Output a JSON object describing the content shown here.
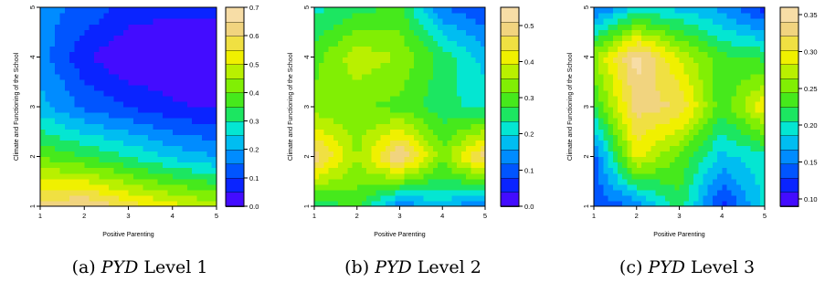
{
  "chart_data": [
    {
      "type": "heatmap",
      "subtype": "filled-contour",
      "caption_label": "(a)",
      "caption_em": "PYD",
      "caption_rest": "Level 1",
      "xlabel": "Positive Parenting",
      "ylabel": "Climate and Functioning of the School",
      "x": [
        1,
        2,
        3,
        4,
        5
      ],
      "y": [
        1,
        2,
        3,
        4,
        5
      ],
      "xlim": [
        1,
        5
      ],
      "ylim": [
        1,
        5
      ],
      "x_ticks": [
        "1",
        "2",
        "3",
        "4",
        "5"
      ],
      "y_ticks": [
        "1",
        "2",
        "3",
        "4",
        "5"
      ],
      "legend_ticks": [
        "0.0",
        "0.1",
        "0.2",
        "0.3",
        "0.4",
        "0.5",
        "0.6",
        "0.7"
      ],
      "zlim": [
        0,
        0.7
      ],
      "z": [
        [
          0.62,
          0.66,
          0.58,
          0.52,
          0.48
        ],
        [
          0.4,
          0.35,
          0.3,
          0.24,
          0.2
        ],
        [
          0.22,
          0.14,
          0.1,
          0.06,
          0.04
        ],
        [
          0.18,
          0.06,
          0.0,
          0.0,
          0.02
        ],
        [
          0.17,
          0.14,
          0.08,
          0.06,
          0.06
        ]
      ]
    },
    {
      "type": "heatmap",
      "subtype": "filled-contour",
      "caption_label": "(b)",
      "caption_em": "PYD",
      "caption_rest": "Level 2",
      "xlabel": "Positive Parenting",
      "ylabel": "Climate and Functioning of the School",
      "x": [
        1,
        2,
        3,
        4,
        5
      ],
      "y": [
        1,
        2,
        3,
        4,
        5
      ],
      "xlim": [
        1,
        5
      ],
      "ylim": [
        1,
        5
      ],
      "x_ticks": [
        "1",
        "2",
        "3",
        "4",
        "5"
      ],
      "y_ticks": [
        "1",
        "2",
        "3",
        "4",
        "5"
      ],
      "legend_ticks": [
        "0.0",
        "0.1",
        "0.2",
        "0.3",
        "0.4",
        "0.5"
      ],
      "zlim": [
        0,
        0.55
      ],
      "z": [
        [
          0.24,
          0.29,
          0.12,
          0.18,
          0.1
        ],
        [
          0.5,
          0.35,
          0.52,
          0.33,
          0.5
        ],
        [
          0.33,
          0.32,
          0.3,
          0.25,
          0.22
        ],
        [
          0.3,
          0.38,
          0.35,
          0.26,
          0.18
        ],
        [
          0.22,
          0.26,
          0.28,
          0.12,
          0.08
        ]
      ]
    },
    {
      "type": "heatmap",
      "subtype": "filled-contour",
      "caption_label": "(c)",
      "caption_em": "PYD",
      "caption_rest": "Level 3",
      "xlabel": "Positive Parenting",
      "ylabel": "Climate and Functioning of the School",
      "x": [
        1,
        2,
        3,
        4,
        5
      ],
      "y": [
        1,
        2,
        3,
        4,
        5
      ],
      "xlim": [
        1,
        5
      ],
      "ylim": [
        1,
        5
      ],
      "x_ticks": [
        "1",
        "2",
        "3",
        "4",
        "5"
      ],
      "y_ticks": [
        "1",
        "2",
        "3",
        "4",
        "5"
      ],
      "legend_ticks": [
        "0.10",
        "0.15",
        "0.20",
        "0.25",
        "0.30",
        "0.35"
      ],
      "zlim": [
        0.09,
        0.36
      ],
      "z": [
        [
          0.13,
          0.15,
          0.22,
          0.12,
          0.19
        ],
        [
          0.14,
          0.29,
          0.24,
          0.18,
          0.2
        ],
        [
          0.22,
          0.33,
          0.32,
          0.23,
          0.3
        ],
        [
          0.26,
          0.35,
          0.28,
          0.23,
          0.22
        ],
        [
          0.14,
          0.19,
          0.18,
          0.16,
          0.12
        ]
      ]
    }
  ]
}
